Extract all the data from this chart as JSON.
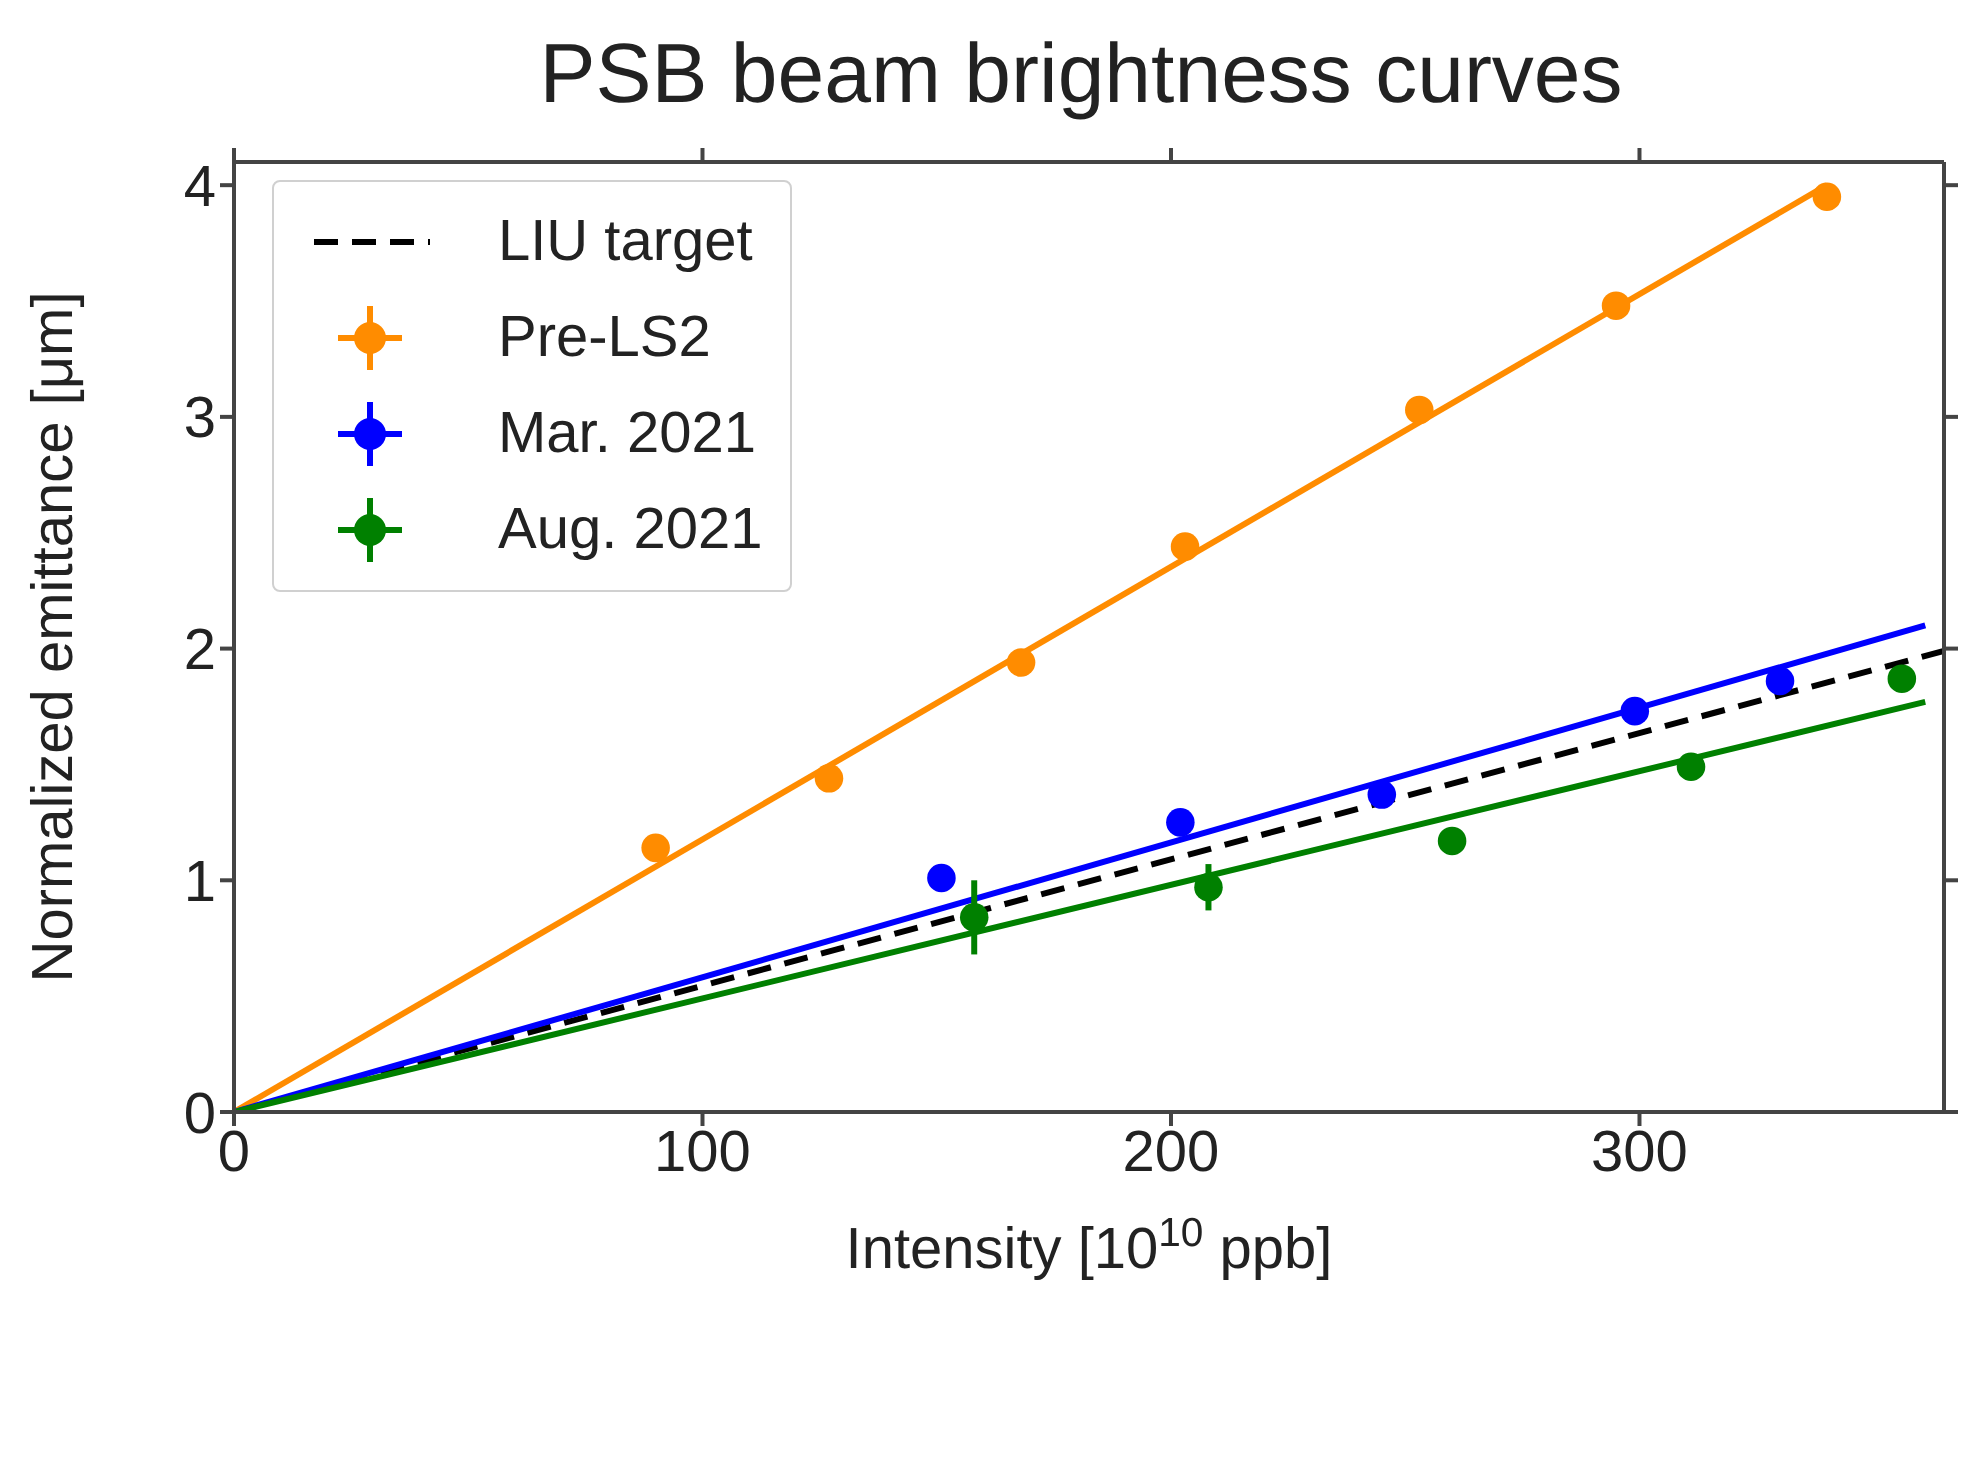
{
  "chart_data": {
    "type": "scatter",
    "title": "PSB beam brightness curves",
    "xlabel": "Intensity [10$^{10}$ ppb]",
    "ylabel": "Normalized emittance [μm]",
    "xlim": [
      0,
      365
    ],
    "ylim": [
      0,
      4.1
    ],
    "xticks": [
      0,
      100,
      200,
      300
    ],
    "yticks": [
      0,
      1,
      2,
      3,
      4
    ],
    "legend": "top left",
    "marker": "circle",
    "series": [
      {
        "name": "LIU target",
        "type": "line",
        "color": "#000000",
        "line_style": "dashed",
        "marker": "none",
        "x": [
          0,
          365
        ],
        "values": [
          0,
          1.99
        ]
      },
      {
        "type": "line",
        "color": "#ff8c00",
        "marker": "none",
        "x": [
          0,
          340
        ],
        "values": [
          0,
          4.0
        ]
      },
      {
        "type": "line",
        "color": "#0000ff",
        "marker": "none",
        "x": [
          0,
          361
        ],
        "values": [
          0,
          2.1
        ]
      },
      {
        "type": "line",
        "color": "#008000",
        "marker": "none",
        "x": [
          0,
          361
        ],
        "values": [
          0,
          1.77
        ]
      },
      {
        "name": "Pre-LS2",
        "color": "#ff8c00",
        "x": [
          90,
          127,
          168,
          203,
          253,
          295,
          340
        ],
        "values": [
          1.14,
          1.44,
          1.94,
          2.44,
          3.03,
          3.48,
          3.95
        ]
      },
      {
        "name": "Mar. 2021",
        "color": "#0000ff",
        "x": [
          151,
          202,
          245,
          299,
          330
        ],
        "values": [
          1.01,
          1.25,
          1.37,
          1.73,
          1.86
        ]
      },
      {
        "name": "Aug. 2021",
        "color": "#008000",
        "x": [
          158,
          208,
          260,
          311,
          356
        ],
        "values": [
          0.84,
          0.97,
          1.17,
          1.49,
          1.87
        ],
        "errors": [
          0.16,
          0.1,
          null,
          null,
          null
        ]
      }
    ]
  }
}
